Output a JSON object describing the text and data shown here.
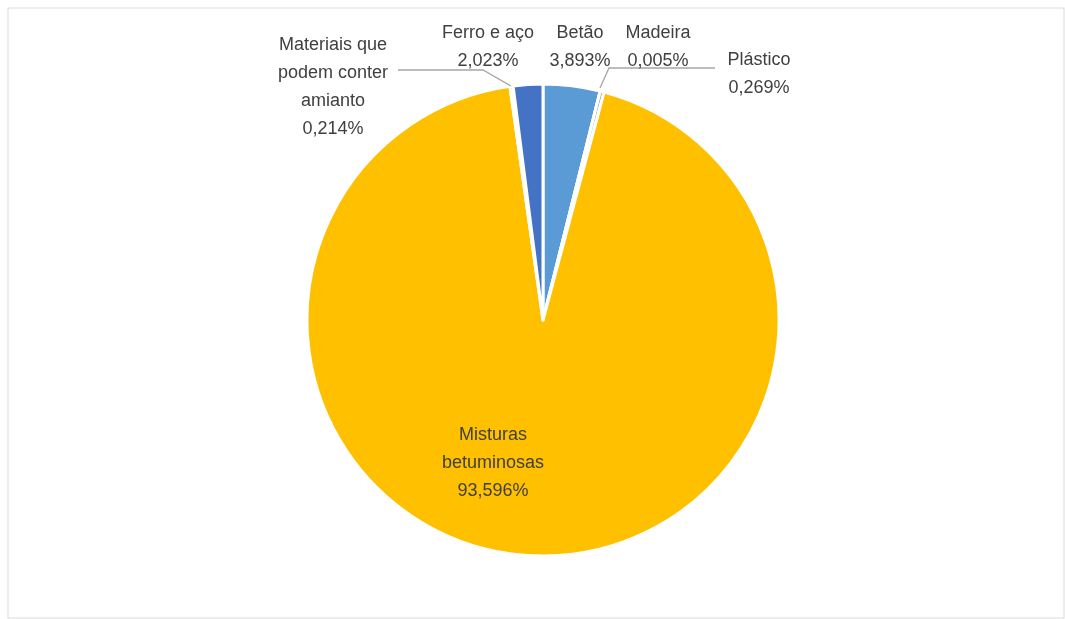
{
  "chart_data": {
    "type": "pie",
    "categories": [
      "Betão",
      "Madeira",
      "Plástico",
      "Misturas betuminosas",
      "Materiais que podem conter amianto",
      "Ferro e aço"
    ],
    "values": [
      3.893,
      0.005,
      0.269,
      93.596,
      0.214,
      2.023
    ],
    "value_labels": [
      "3,893%",
      "0,005%",
      "0,269%",
      "93,596%",
      "0,214%",
      "2,023%"
    ],
    "colors": [
      "#5b9bd5",
      "#ed7d31",
      "#a5a5a5",
      "#ffc000",
      "#70ad47",
      "#4472c4"
    ]
  }
}
